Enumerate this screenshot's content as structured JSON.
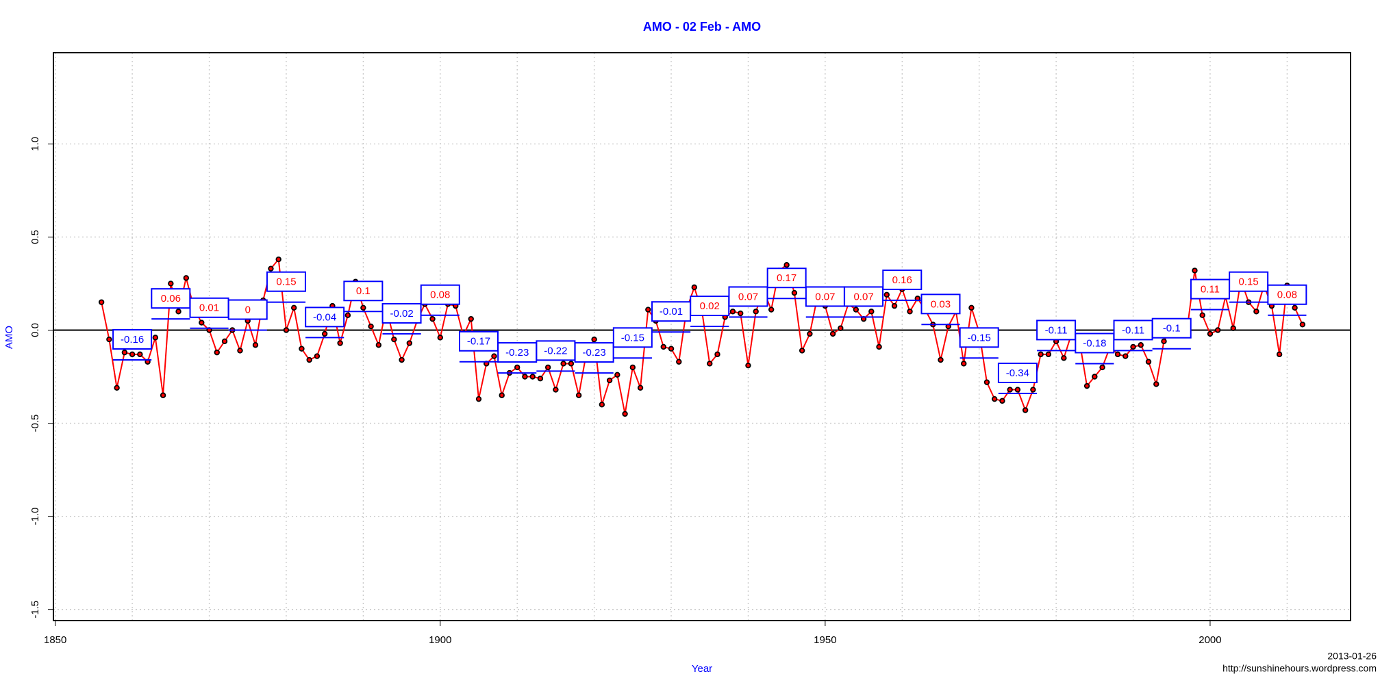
{
  "chart_data": {
    "type": "line",
    "title": "AMO - 02 Feb - AMO",
    "x_label": "Year",
    "y_label": "AMO",
    "date": "2013-01-26",
    "source": "http://sunshinehours.wordpress.com",
    "x": [
      1856,
      1857,
      1858,
      1859,
      1860,
      1861,
      1862,
      1863,
      1864,
      1865,
      1866,
      1867,
      1868,
      1869,
      1870,
      1871,
      1872,
      1873,
      1874,
      1875,
      1876,
      1877,
      1878,
      1879,
      1880,
      1881,
      1882,
      1883,
      1884,
      1885,
      1886,
      1887,
      1888,
      1889,
      1890,
      1891,
      1892,
      1893,
      1894,
      1895,
      1896,
      1897,
      1898,
      1899,
      1900,
      1901,
      1902,
      1903,
      1904,
      1905,
      1906,
      1907,
      1908,
      1909,
      1910,
      1911,
      1912,
      1913,
      1914,
      1915,
      1916,
      1917,
      1918,
      1919,
      1920,
      1921,
      1922,
      1923,
      1924,
      1925,
      1926,
      1927,
      1928,
      1929,
      1930,
      1931,
      1932,
      1933,
      1934,
      1935,
      1936,
      1937,
      1938,
      1939,
      1940,
      1941,
      1942,
      1943,
      1944,
      1945,
      1946,
      1947,
      1948,
      1949,
      1950,
      1951,
      1952,
      1953,
      1954,
      1955,
      1956,
      1957,
      1958,
      1959,
      1960,
      1961,
      1962,
      1963,
      1964,
      1965,
      1966,
      1967,
      1968,
      1969,
      1970,
      1971,
      1972,
      1973,
      1974,
      1975,
      1976,
      1977,
      1978,
      1979,
      1980,
      1981,
      1982,
      1983,
      1984,
      1985,
      1986,
      1987,
      1988,
      1989,
      1990,
      1991,
      1992,
      1993,
      1994,
      1995,
      1996,
      1997,
      1998,
      1999,
      2000,
      2001,
      2002,
      2003,
      2004,
      2005,
      2006,
      2007,
      2008,
      2009,
      2010,
      2011,
      2012
    ],
    "series": [
      {
        "name": "AMO",
        "color": "#ff0000",
        "marker_color": "#000000",
        "values": [
          0.15,
          -0.05,
          -0.31,
          -0.12,
          -0.13,
          -0.13,
          -0.17,
          -0.04,
          -0.35,
          0.25,
          0.1,
          0.28,
          0.12,
          0.04,
          0.0,
          -0.12,
          -0.06,
          0.0,
          -0.11,
          0.05,
          -0.08,
          0.16,
          0.33,
          0.38,
          0.0,
          0.12,
          -0.1,
          -0.16,
          -0.14,
          -0.02,
          0.13,
          -0.07,
          0.08,
          0.26,
          0.12,
          0.02,
          -0.08,
          0.12,
          -0.05,
          -0.16,
          -0.07,
          0.05,
          0.14,
          0.06,
          -0.04,
          0.14,
          0.13,
          -0.03,
          0.06,
          -0.37,
          -0.18,
          -0.14,
          -0.35,
          -0.23,
          -0.2,
          -0.25,
          -0.25,
          -0.26,
          -0.2,
          -0.32,
          -0.18,
          -0.18,
          -0.35,
          -0.12,
          -0.05,
          -0.4,
          -0.27,
          -0.24,
          -0.45,
          -0.2,
          -0.31,
          0.11,
          0.05,
          -0.09,
          -0.1,
          -0.17,
          0.11,
          0.23,
          0.1,
          -0.18,
          -0.13,
          0.07,
          0.1,
          0.09,
          -0.19,
          0.1,
          0.21,
          0.11,
          0.32,
          0.35,
          0.2,
          -0.11,
          -0.02,
          0.18,
          0.13,
          -0.02,
          0.01,
          0.14,
          0.11,
          0.06,
          0.1,
          -0.09,
          0.19,
          0.13,
          0.22,
          0.1,
          0.17,
          0.11,
          0.03,
          -0.16,
          0.02,
          0.1,
          -0.18,
          0.12,
          -0.01,
          -0.28,
          -0.37,
          -0.38,
          -0.32,
          -0.32,
          -0.43,
          -0.32,
          -0.13,
          -0.13,
          -0.06,
          -0.15,
          -0.02,
          -0.05,
          -0.3,
          -0.25,
          -0.2,
          -0.09,
          -0.13,
          -0.14,
          -0.09,
          -0.08,
          -0.17,
          -0.29,
          -0.06,
          0.02,
          -0.02,
          0.0,
          0.32,
          0.08,
          -0.02,
          0.0,
          0.18,
          0.01,
          0.27,
          0.15,
          0.1,
          0.24,
          0.13,
          -0.13,
          0.24,
          0.12,
          0.03
        ]
      }
    ],
    "averages": {
      "color": "#0000ff",
      "positive_label_color": "#ff0000",
      "negative_label_color": "#0000ff",
      "x_start": [
        1857.5,
        1862.5,
        1867.5,
        1872.5,
        1877.5,
        1882.5,
        1887.5,
        1892.5,
        1897.5,
        1902.5,
        1907.5,
        1912.5,
        1917.5,
        1922.5,
        1927.5,
        1932.5,
        1937.5,
        1942.5,
        1947.5,
        1952.5,
        1957.5,
        1962.5,
        1967.5,
        1972.5,
        1977.5,
        1982.5,
        1987.5,
        1992.5,
        1997.5,
        2002.5,
        2007.5
      ],
      "x_end": [
        1862.5,
        1867.5,
        1872.5,
        1877.5,
        1882.5,
        1887.5,
        1892.5,
        1897.5,
        1902.5,
        1907.5,
        1912.5,
        1917.5,
        1922.5,
        1927.5,
        1932.5,
        1937.5,
        1942.5,
        1947.5,
        1952.5,
        1957.5,
        1962.5,
        1967.5,
        1972.5,
        1977.5,
        1982.5,
        1987.5,
        1992.5,
        1997.5,
        2002.5,
        2007.5,
        2012.5
      ],
      "values": [
        -0.16,
        0.06,
        0.01,
        0,
        0.15,
        -0.04,
        0.1,
        -0.02,
        0.08,
        -0.17,
        -0.23,
        -0.22,
        -0.23,
        -0.15,
        -0.01,
        0.02,
        0.07,
        0.17,
        0.07,
        0.07,
        0.16,
        0.03,
        -0.15,
        -0.34,
        -0.11,
        -0.18,
        -0.11,
        -0.1,
        0.11,
        0.15,
        0.08
      ]
    },
    "reference_line": 0,
    "xlim": [
      1849.76,
      2018.24
    ],
    "ylim": [
      -1.56,
      1.49
    ],
    "xticks": [
      1850,
      1900,
      1950,
      2000
    ],
    "xgrid": [
      1850,
      1860,
      1870,
      1880,
      1890,
      1900,
      1910,
      1920,
      1930,
      1940,
      1950,
      1960,
      1970,
      1980,
      1990,
      2000,
      2010
    ],
    "yticks": [
      -1.5,
      {
        "value": -1,
        "label": "-1.0"
      },
      -0.5,
      {
        "value": 0,
        "label": "0.0"
      },
      0.5,
      {
        "value": 1,
        "label": "1.0"
      }
    ],
    "grid": true
  }
}
